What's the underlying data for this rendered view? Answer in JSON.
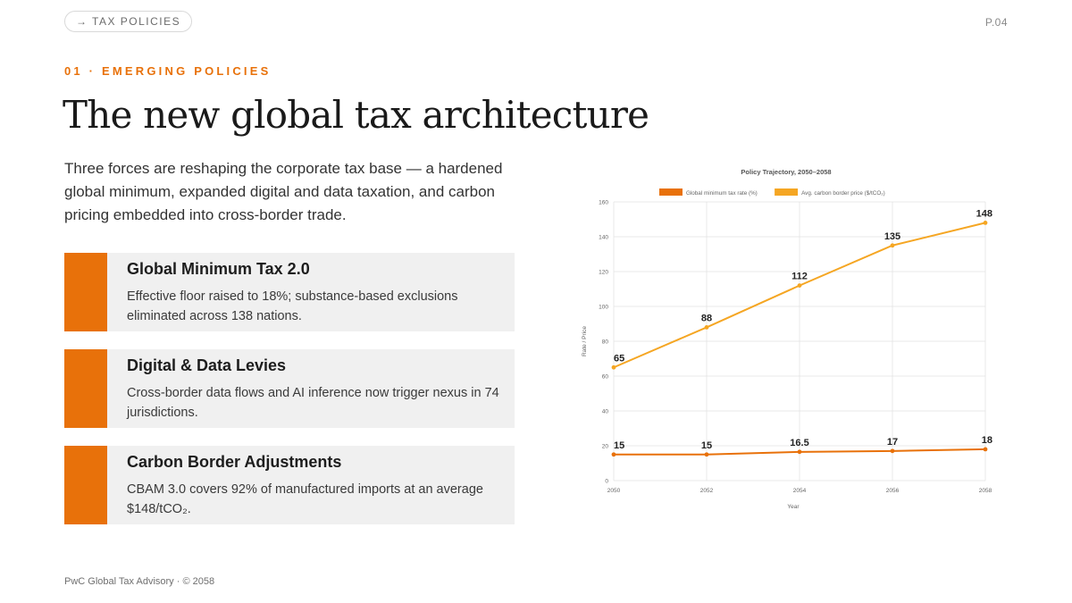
{
  "nav": {
    "pill_arrow": "→",
    "pill_label": "TAX POLICIES",
    "page": "P.04"
  },
  "eyebrow": "01 · EMERGING POLICIES",
  "title": "The new global tax architecture",
  "lede": "Three forces are reshaping the corporate tax base — a hardened global minimum, expanded digital and data taxation, and carbon pricing embedded into cross-border trade.",
  "cards": [
    {
      "title": "Global Minimum Tax 2.0",
      "body": "Effective floor raised to 18%; substance-based exclusions eliminated across 138 nations."
    },
    {
      "title": "Digital & Data Levies",
      "body": "Cross-border data flows and AI inference now trigger nexus in 74 jurisdictions."
    },
    {
      "title": "Carbon Border Adjustments",
      "body": "CBAM 3.0 covers 92% of manufactured imports at an average $148/tCO₂."
    }
  ],
  "footer": "PwC Global Tax Advisory · © 2058",
  "colors": {
    "accent": "#e8710a",
    "series_carbon": "#f5a623",
    "card_bg": "#f0f0f0"
  },
  "chart_data": {
    "type": "line",
    "title": "Policy Trajectory, 2050–2058",
    "xlabel": "Year",
    "ylabel": "Rate / Price",
    "x": [
      2050,
      2052,
      2054,
      2056,
      2058
    ],
    "xticks": [
      "2050",
      "2052",
      "2054",
      "2056",
      "2058"
    ],
    "ylim": [
      0,
      160
    ],
    "yticks": [
      0,
      20,
      40,
      60,
      80,
      100,
      120,
      140,
      160
    ],
    "grid": true,
    "legend": "top",
    "series": [
      {
        "name": "Global minimum tax rate (%)",
        "color": "#e8710a",
        "values": [
          15,
          15,
          16.5,
          17,
          18
        ],
        "labels": [
          "15",
          "15",
          "16.5",
          "17",
          "18"
        ]
      },
      {
        "name": "Avg. carbon border price ($/tCO₂)",
        "color": "#f5a623",
        "values": [
          65,
          88,
          112,
          135,
          148
        ],
        "labels": [
          "65",
          "88",
          "112",
          "135",
          "148"
        ]
      }
    ]
  }
}
